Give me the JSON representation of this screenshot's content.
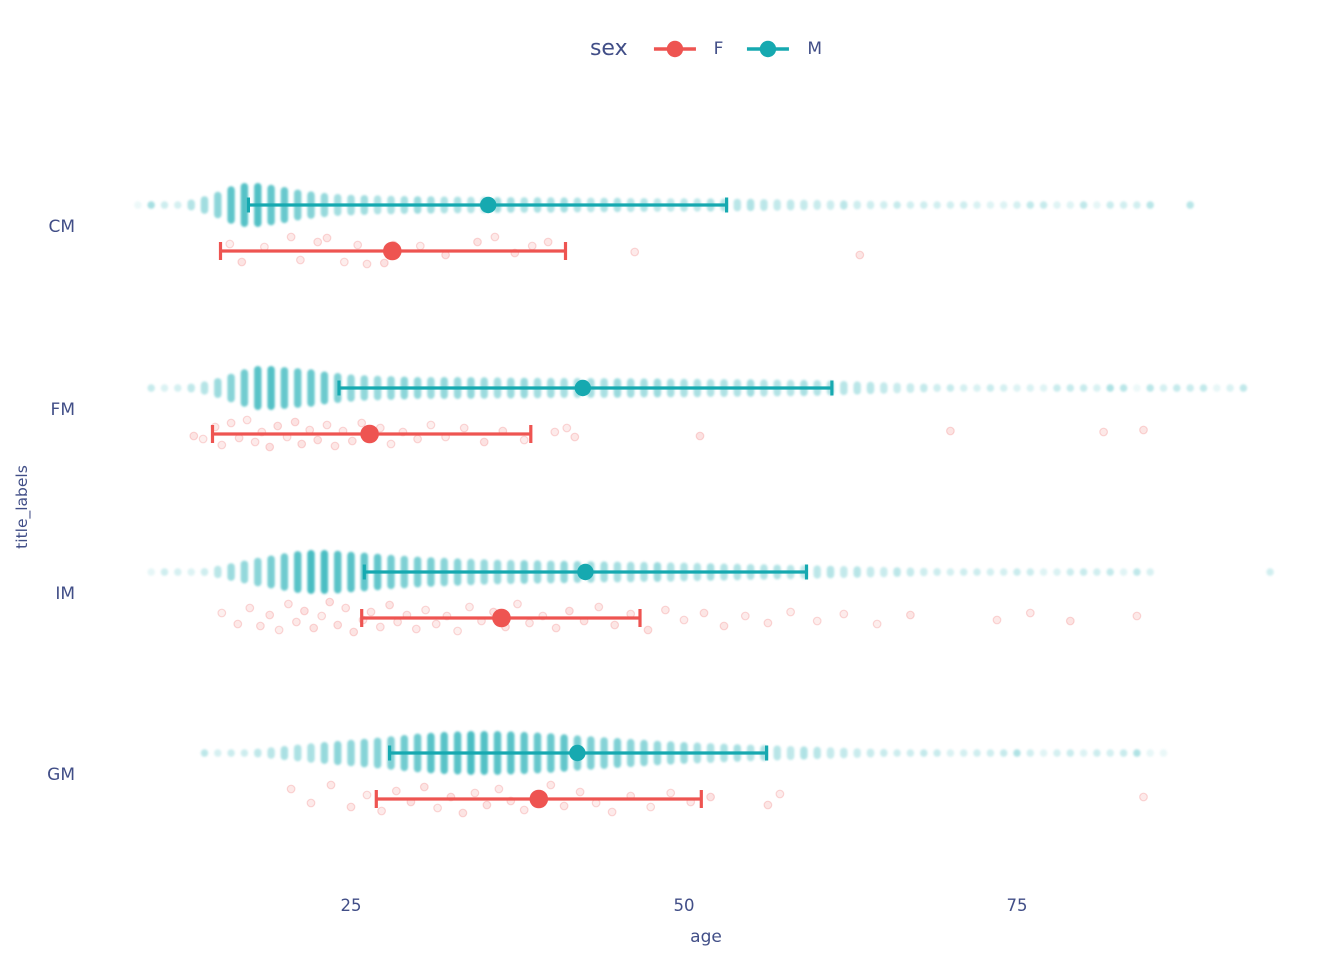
{
  "legend": {
    "title": "sex",
    "items": [
      {
        "label": "F",
        "color": "#ee5451"
      },
      {
        "label": "M",
        "color": "#16a9b0"
      }
    ]
  },
  "axes": {
    "x": {
      "label": "age",
      "ticks": [
        "25",
        "50",
        "75"
      ],
      "range": [
        8,
        95
      ]
    },
    "y": {
      "label": "title_labels",
      "categories": [
        "CM",
        "FM",
        "IM",
        "GM"
      ]
    }
  },
  "colors": {
    "F": "#ee5451",
    "M": "#16a9b0",
    "M_strip": "#1fadb4",
    "text": "#414e87",
    "background": "#ffffff"
  },
  "chart_data": {
    "type": "strip-pointrange",
    "title": "",
    "xlabel": "age",
    "ylabel": "title_labels",
    "x_ticks": [
      25,
      50,
      75
    ],
    "x_range": [
      8,
      95
    ],
    "categories": [
      "CM",
      "FM",
      "IM",
      "GM"
    ],
    "groups": [
      "F",
      "M"
    ],
    "legend_position": "top-center",
    "grid": false,
    "pointranges": {
      "M": {
        "CM": {
          "mean": 35.3,
          "low": 17.3,
          "high": 53.2
        },
        "FM": {
          "mean": 42.4,
          "low": 24.1,
          "high": 61.1
        },
        "IM": {
          "mean": 42.6,
          "low": 26.0,
          "high": 59.2
        },
        "GM": {
          "mean": 42.0,
          "low": 27.9,
          "high": 56.2
        }
      },
      "F": {
        "CM": {
          "mean": 28.1,
          "low": 15.2,
          "high": 41.1
        },
        "FM": {
          "mean": 26.4,
          "low": 14.6,
          "high": 38.5
        },
        "IM": {
          "mean": 36.3,
          "low": 25.8,
          "high": 46.7
        },
        "GM": {
          "mean": 39.1,
          "low": 26.9,
          "high": 51.3
        }
      }
    },
    "male_density": {
      "CM": [
        [
          9,
          0.04
        ],
        [
          10,
          0.06
        ],
        [
          11,
          0.1
        ],
        [
          12,
          0.15
        ],
        [
          13,
          0.25
        ],
        [
          14,
          0.4
        ],
        [
          15,
          0.6
        ],
        [
          16,
          0.85
        ],
        [
          17,
          1.0
        ],
        [
          18,
          1.0
        ],
        [
          19,
          0.92
        ],
        [
          20,
          0.82
        ],
        [
          21,
          0.7
        ],
        [
          22,
          0.62
        ],
        [
          23,
          0.55
        ],
        [
          24,
          0.5
        ],
        [
          25,
          0.47
        ],
        [
          26,
          0.45
        ],
        [
          28,
          0.42
        ],
        [
          30,
          0.4
        ],
        [
          33,
          0.38
        ],
        [
          36,
          0.36
        ],
        [
          40,
          0.35
        ],
        [
          44,
          0.33
        ],
        [
          48,
          0.31
        ],
        [
          52,
          0.3
        ],
        [
          55,
          0.28
        ],
        [
          57,
          0.26
        ],
        [
          59,
          0.24
        ],
        [
          61,
          0.22
        ],
        [
          63,
          0.2
        ],
        [
          65,
          0.18
        ],
        [
          67,
          0.16
        ],
        [
          69,
          0.14
        ],
        [
          71,
          0.12
        ],
        [
          73,
          0.1
        ],
        [
          75,
          0.08
        ],
        [
          77,
          0.06
        ],
        [
          79,
          0.05
        ],
        [
          81,
          0.05
        ],
        [
          83,
          0.04
        ],
        [
          85,
          0.04
        ],
        [
          86,
          0
        ],
        [
          87,
          0
        ],
        [
          88,
          0.05
        ],
        [
          88.4,
          0
        ]
      ],
      "FM": [
        [
          10,
          0.04
        ],
        [
          11,
          0.07
        ],
        [
          12,
          0.12
        ],
        [
          13,
          0.2
        ],
        [
          14,
          0.3
        ],
        [
          15,
          0.45
        ],
        [
          16,
          0.65
        ],
        [
          17,
          0.85
        ],
        [
          18,
          1.0
        ],
        [
          19,
          1.0
        ],
        [
          20,
          0.95
        ],
        [
          21,
          0.9
        ],
        [
          22,
          0.85
        ],
        [
          23,
          0.75
        ],
        [
          24,
          0.68
        ],
        [
          25,
          0.62
        ],
        [
          26,
          0.58
        ],
        [
          28,
          0.54
        ],
        [
          30,
          0.5
        ],
        [
          33,
          0.5
        ],
        [
          36,
          0.48
        ],
        [
          40,
          0.46
        ],
        [
          44,
          0.45
        ],
        [
          48,
          0.43
        ],
        [
          52,
          0.41
        ],
        [
          56,
          0.39
        ],
        [
          60,
          0.36
        ],
        [
          62,
          0.32
        ],
        [
          64,
          0.28
        ],
        [
          66,
          0.24
        ],
        [
          68,
          0.2
        ],
        [
          70,
          0.17
        ],
        [
          72,
          0.14
        ],
        [
          74,
          0.11
        ],
        [
          76,
          0.09
        ],
        [
          78,
          0.07
        ],
        [
          80,
          0.06
        ],
        [
          82,
          0.05
        ],
        [
          84,
          0.05
        ],
        [
          86,
          0.04
        ],
        [
          88,
          0.04
        ],
        [
          90,
          0.03
        ],
        [
          92,
          0.03
        ],
        [
          92.4,
          0
        ]
      ],
      "IM": [
        [
          10,
          0.03
        ],
        [
          11,
          0.05
        ],
        [
          12,
          0.08
        ],
        [
          13,
          0.12
        ],
        [
          14,
          0.18
        ],
        [
          15,
          0.28
        ],
        [
          16,
          0.4
        ],
        [
          17,
          0.52
        ],
        [
          18,
          0.65
        ],
        [
          19,
          0.75
        ],
        [
          20,
          0.85
        ],
        [
          21,
          0.95
        ],
        [
          22,
          1.0
        ],
        [
          23,
          1.0
        ],
        [
          24,
          0.97
        ],
        [
          25,
          0.92
        ],
        [
          26,
          0.88
        ],
        [
          28,
          0.78
        ],
        [
          30,
          0.7
        ],
        [
          33,
          0.62
        ],
        [
          36,
          0.56
        ],
        [
          40,
          0.52
        ],
        [
          44,
          0.48
        ],
        [
          48,
          0.45
        ],
        [
          52,
          0.4
        ],
        [
          56,
          0.35
        ],
        [
          60,
          0.3
        ],
        [
          63,
          0.26
        ],
        [
          66,
          0.22
        ],
        [
          69,
          0.18
        ],
        [
          72,
          0.14
        ],
        [
          75,
          0.1
        ],
        [
          78,
          0.07
        ],
        [
          80,
          0.05
        ],
        [
          82,
          0.05
        ],
        [
          84,
          0.04
        ],
        [
          85,
          0.04
        ],
        [
          86,
          0
        ],
        [
          93,
          0
        ],
        [
          94,
          0.05
        ],
        [
          94.4,
          0
        ]
      ],
      "GM": [
        [
          14,
          0.04
        ],
        [
          15,
          0.06
        ],
        [
          16,
          0.1
        ],
        [
          17,
          0.15
        ],
        [
          18,
          0.2
        ],
        [
          19,
          0.26
        ],
        [
          20,
          0.32
        ],
        [
          21,
          0.38
        ],
        [
          22,
          0.44
        ],
        [
          23,
          0.5
        ],
        [
          24,
          0.55
        ],
        [
          25,
          0.6
        ],
        [
          26,
          0.65
        ],
        [
          27,
          0.7
        ],
        [
          28,
          0.76
        ],
        [
          29,
          0.82
        ],
        [
          30,
          0.88
        ],
        [
          31,
          0.92
        ],
        [
          32,
          0.96
        ],
        [
          33,
          0.98
        ],
        [
          34,
          1.0
        ],
        [
          35,
          1.0
        ],
        [
          36,
          1.0
        ],
        [
          37,
          0.98
        ],
        [
          38,
          0.96
        ],
        [
          39,
          0.93
        ],
        [
          40,
          0.9
        ],
        [
          41,
          0.85
        ],
        [
          42,
          0.8
        ],
        [
          44,
          0.72
        ],
        [
          46,
          0.64
        ],
        [
          48,
          0.56
        ],
        [
          50,
          0.5
        ],
        [
          52,
          0.45
        ],
        [
          54,
          0.4
        ],
        [
          56,
          0.36
        ],
        [
          58,
          0.32
        ],
        [
          60,
          0.28
        ],
        [
          62,
          0.24
        ],
        [
          64,
          0.2
        ],
        [
          66,
          0.17
        ],
        [
          68,
          0.14
        ],
        [
          70,
          0.11
        ],
        [
          72,
          0.09
        ],
        [
          74,
          0.07
        ],
        [
          76,
          0.06
        ],
        [
          78,
          0.05
        ],
        [
          80,
          0.04
        ],
        [
          82,
          0.04
        ],
        [
          84,
          0.03
        ],
        [
          86,
          0.03
        ]
      ]
    },
    "female_points": {
      "CM": [
        [
          15.9,
          -7
        ],
        [
          16.8,
          11
        ],
        [
          18.5,
          -4
        ],
        [
          20.5,
          -14
        ],
        [
          21.2,
          9
        ],
        [
          22.5,
          -9
        ],
        [
          23.2,
          -13
        ],
        [
          24.5,
          11
        ],
        [
          25.5,
          -6
        ],
        [
          26.2,
          13
        ],
        [
          27.5,
          12
        ],
        [
          28.2,
          -6
        ],
        [
          30.2,
          -5
        ],
        [
          32.1,
          4
        ],
        [
          34.5,
          -9
        ],
        [
          35.8,
          -14
        ],
        [
          37.3,
          2
        ],
        [
          38.6,
          -5
        ],
        [
          39.8,
          -9
        ],
        [
          46.3,
          1
        ],
        [
          63.2,
          4
        ]
      ],
      "FM": [
        [
          13.2,
          2
        ],
        [
          13.9,
          5
        ],
        [
          14.8,
          -7
        ],
        [
          15.3,
          11
        ],
        [
          16,
          -11
        ],
        [
          16.6,
          4
        ],
        [
          17.2,
          -14
        ],
        [
          17.8,
          8
        ],
        [
          18.3,
          -2
        ],
        [
          18.9,
          13
        ],
        [
          19.5,
          -8
        ],
        [
          20.2,
          3
        ],
        [
          20.8,
          -12
        ],
        [
          21.3,
          10
        ],
        [
          21.9,
          -4
        ],
        [
          22.5,
          6
        ],
        [
          23.2,
          -9
        ],
        [
          23.8,
          12
        ],
        [
          24.4,
          -3
        ],
        [
          25.1,
          7
        ],
        [
          25.8,
          -11
        ],
        [
          26.5,
          2
        ],
        [
          27.2,
          -6
        ],
        [
          28,
          10
        ],
        [
          28.9,
          -2
        ],
        [
          30,
          5
        ],
        [
          31,
          -9
        ],
        [
          32.1,
          3
        ],
        [
          33.5,
          -6
        ],
        [
          35,
          8
        ],
        [
          36.4,
          -3
        ],
        [
          38,
          6
        ],
        [
          40.3,
          -2
        ],
        [
          41.2,
          -6
        ],
        [
          41.8,
          3
        ],
        [
          51.2,
          2
        ],
        [
          70,
          -3
        ],
        [
          81.5,
          -2
        ],
        [
          84.5,
          -4
        ]
      ],
      "IM": [
        [
          15.3,
          -5
        ],
        [
          16.5,
          6
        ],
        [
          17.4,
          -10
        ],
        [
          18.2,
          8
        ],
        [
          18.9,
          -3
        ],
        [
          19.6,
          12
        ],
        [
          20.3,
          -14
        ],
        [
          20.9,
          4
        ],
        [
          21.5,
          -7
        ],
        [
          22.2,
          10
        ],
        [
          22.8,
          -2
        ],
        [
          23.4,
          -16
        ],
        [
          24,
          7
        ],
        [
          24.6,
          -10
        ],
        [
          25.2,
          14
        ],
        [
          25.9,
          2
        ],
        [
          26.5,
          -6
        ],
        [
          27.2,
          9
        ],
        [
          27.9,
          -13
        ],
        [
          28.5,
          4
        ],
        [
          29.2,
          -3
        ],
        [
          29.9,
          11
        ],
        [
          30.6,
          -8
        ],
        [
          31.4,
          6
        ],
        [
          32.2,
          -2
        ],
        [
          33,
          13
        ],
        [
          33.9,
          -11
        ],
        [
          34.8,
          3
        ],
        [
          35.7,
          -6
        ],
        [
          36.6,
          9
        ],
        [
          37.5,
          -14
        ],
        [
          38.4,
          5
        ],
        [
          39.4,
          -2
        ],
        [
          40.4,
          10
        ],
        [
          41.4,
          -7
        ],
        [
          42.5,
          3
        ],
        [
          43.6,
          -11
        ],
        [
          44.8,
          7
        ],
        [
          46,
          -4
        ],
        [
          47.3,
          12
        ],
        [
          48.6,
          -8
        ],
        [
          50,
          2
        ],
        [
          51.5,
          -5
        ],
        [
          53,
          8
        ],
        [
          54.6,
          -2
        ],
        [
          56.3,
          5
        ],
        [
          58,
          -6
        ],
        [
          60,
          3
        ],
        [
          62,
          -4
        ],
        [
          64.5,
          6
        ],
        [
          67,
          -3
        ],
        [
          73.5,
          2
        ],
        [
          76,
          -5
        ],
        [
          79,
          3
        ],
        [
          84,
          -2
        ]
      ],
      "GM": [
        [
          20.5,
          -10
        ],
        [
          22,
          4
        ],
        [
          23.5,
          -14
        ],
        [
          25,
          8
        ],
        [
          26.2,
          -4
        ],
        [
          27.3,
          12
        ],
        [
          28.4,
          -8
        ],
        [
          29.5,
          3
        ],
        [
          30.5,
          -12
        ],
        [
          31.5,
          9
        ],
        [
          32.5,
          -2
        ],
        [
          33.4,
          14
        ],
        [
          34.3,
          -6
        ],
        [
          35.2,
          6
        ],
        [
          36.1,
          -10
        ],
        [
          37,
          2
        ],
        [
          38,
          11
        ],
        [
          39,
          -4
        ],
        [
          40,
          -14
        ],
        [
          41,
          7
        ],
        [
          42.2,
          -7
        ],
        [
          43.4,
          4
        ],
        [
          44.6,
          13
        ],
        [
          46,
          -3
        ],
        [
          47.5,
          8
        ],
        [
          49,
          -6
        ],
        [
          50.5,
          3
        ],
        [
          52,
          -2
        ],
        [
          56.3,
          6
        ],
        [
          57.2,
          -5
        ],
        [
          84.5,
          -2
        ]
      ]
    }
  }
}
